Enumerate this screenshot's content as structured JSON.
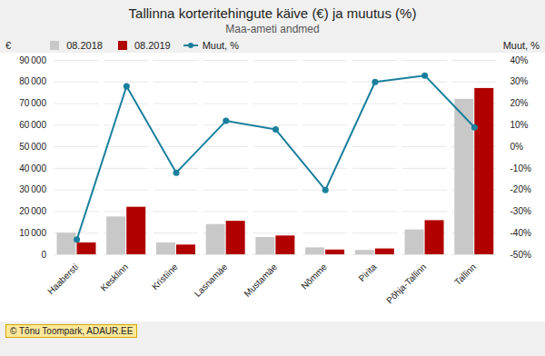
{
  "chart_data": {
    "type": "bar",
    "title": "Tallinna korteritehingute käive (€) ja muutus (%)",
    "subtitle": "Maa-ameti andmed",
    "y_label": "€",
    "y2_label": "Muut, %",
    "categories": [
      "Haabersti",
      "Kesklinn",
      "Kristiine",
      "Lasnamäe",
      "Mustamäe",
      "Nõmme",
      "Pirita",
      "Põhja-Tallinn",
      "Tallinn"
    ],
    "series": [
      {
        "name": "08.2018",
        "type": "bar",
        "color": "#c8c8c8",
        "values": [
          10000,
          17500,
          5500,
          14000,
          8000,
          3200,
          2000,
          11500,
          72000
        ]
      },
      {
        "name": "08.2019",
        "type": "bar",
        "color": "#b00000",
        "values": [
          5500,
          22000,
          4500,
          15500,
          8700,
          2200,
          2700,
          15800,
          77000
        ]
      },
      {
        "name": "Muut, %",
        "type": "line",
        "axis": "y2",
        "color": "#1a7f9c",
        "marker": "circle",
        "values": [
          -43,
          28,
          -12,
          12,
          8,
          -20,
          30,
          33,
          9
        ]
      }
    ],
    "ylim": [
      0,
      90000
    ],
    "yticks": [
      0,
      {
        "value": 10000,
        "label": "10 000"
      },
      {
        "value": 20000,
        "label": "20 000"
      },
      {
        "value": 30000,
        "label": "30 000"
      },
      {
        "value": 40000,
        "label": "40 000"
      },
      {
        "value": 50000,
        "label": "50 000"
      },
      {
        "value": 60000,
        "label": "60 000"
      },
      {
        "value": 70000,
        "label": "70 000"
      },
      {
        "value": 80000,
        "label": "80 000"
      },
      {
        "value": 90000,
        "label": "90 000"
      }
    ],
    "y2lim": [
      -50,
      40
    ],
    "y2ticks": [
      {
        "value": -50,
        "label": "-50%"
      },
      {
        "value": -40,
        "label": "-40%"
      },
      {
        "value": -30,
        "label": "-30%"
      },
      {
        "value": -20,
        "label": "-20%"
      },
      {
        "value": -10,
        "label": "-10%"
      },
      {
        "value": 0,
        "label": "0%"
      },
      {
        "value": 10,
        "label": "10%"
      },
      {
        "value": 20,
        "label": "20%"
      },
      {
        "value": 30,
        "label": "30%"
      },
      {
        "value": 40,
        "label": "40%"
      }
    ],
    "grid": true,
    "legend": "upper left",
    "annotations": [
      "© Tõnu Toompark, ADAUR.EE"
    ]
  }
}
